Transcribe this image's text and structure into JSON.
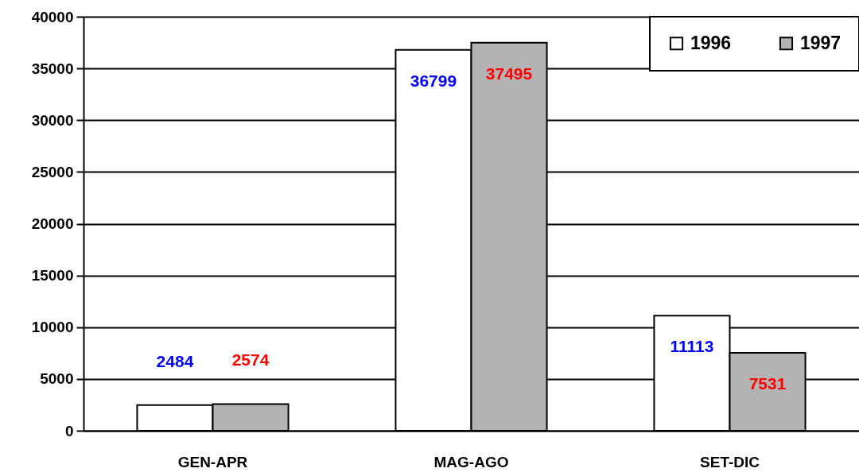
{
  "chart_data": {
    "type": "bar",
    "categories": [
      "GEN-APR",
      "MAG-AGO",
      "SET-DIC"
    ],
    "series": [
      {
        "name": "1996",
        "color": "#ffffff",
        "values": [
          2484,
          36799,
          11113
        ]
      },
      {
        "name": "1997",
        "color": "#b3b3b3",
        "values": [
          2574,
          37495,
          7531
        ]
      }
    ],
    "ylim": [
      0,
      40000
    ],
    "yticks": [
      0,
      5000,
      10000,
      15000,
      20000,
      25000,
      30000,
      35000,
      40000
    ],
    "grid": "y",
    "legend": "top right",
    "data_labels": true
  }
}
